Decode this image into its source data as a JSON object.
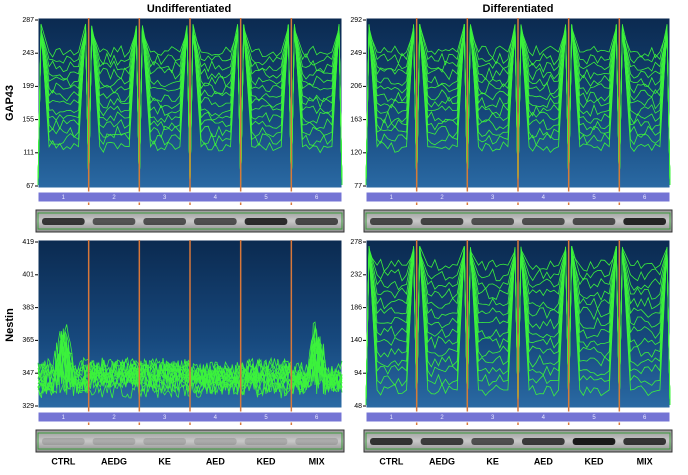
{
  "columns": [
    "Undifferentiated",
    "Differentiated"
  ],
  "rows": [
    "GAP43",
    "Nestin"
  ],
  "panels": [
    {
      "yticks": [
        67,
        111,
        155,
        199,
        243,
        287
      ]
    },
    {
      "yticks": [
        77,
        120,
        163,
        206,
        249,
        292
      ]
    },
    {
      "yticks": [
        329,
        347,
        365,
        383,
        401,
        419
      ]
    },
    {
      "yticks": [
        48,
        94,
        140,
        186,
        232,
        278
      ]
    }
  ],
  "lanes": [
    "1",
    "2",
    "3",
    "4",
    "5",
    "6"
  ],
  "categories": [
    "CTRL",
    "AEDG",
    "KE",
    "AED",
    "KED",
    "MIX"
  ]
}
